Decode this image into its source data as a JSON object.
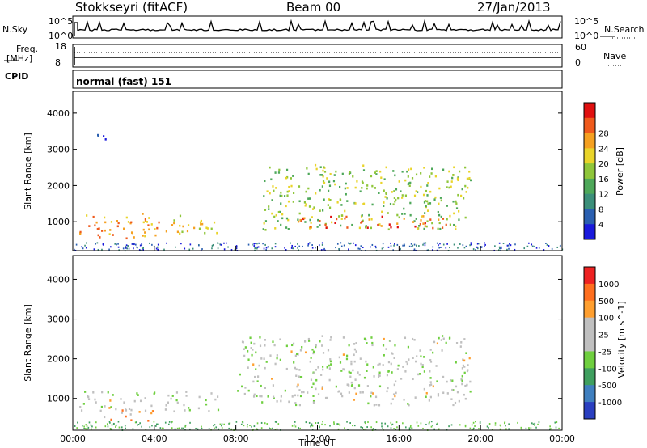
{
  "header": {
    "station": "Stokkseyri (fitACF)",
    "beam": "Beam 00",
    "date": "27/Jan/2013"
  },
  "top_panels": {
    "nsky_label": "N.Sky",
    "nsky_ticks": [
      "10^5",
      "10^0"
    ],
    "nsearch_label": "N.Search",
    "nsearch_ticks": [
      "10^5",
      "10^0"
    ],
    "freq_label": "Freq.",
    "freq_unit": "[MHz]",
    "freq_ticks": [
      "18",
      "8"
    ],
    "nave_label": "Nave",
    "nave_ticks": [
      "60",
      "0"
    ],
    "cpid_label": "CPID",
    "cpid_value": "normal (fast) 151"
  },
  "colors": {
    "power_scale": [
      "#1a1adc",
      "#2a5fb0",
      "#3c8f7a",
      "#4ea85a",
      "#8fc63a",
      "#e9d42a",
      "#f5a020",
      "#ef5a1c",
      "#e01010"
    ],
    "velocity_scale": [
      "#2a3fc0",
      "#3f7fbf",
      "#3f9f5f",
      "#6fcf3f",
      "#c0c0c0",
      "#c0c0c0",
      "#ff9f2f",
      "#ff6f1f",
      "#ee2222"
    ],
    "ground_scatter": "#b9b9b9"
  },
  "chart_data": [
    {
      "type": "heatmap",
      "name": "power-panel",
      "xlabel": "",
      "ylabel": "Slant Range [km]",
      "x_ticks": [
        "00:00",
        "04:00",
        "08:00",
        "12:00",
        "16:00",
        "20:00",
        "00:00"
      ],
      "y_ticks": [
        1000,
        2000,
        3000,
        4000
      ],
      "xlim": [
        0,
        24
      ],
      "ylim": [
        200,
        4600
      ],
      "colorbar": {
        "label": "Power [dB]",
        "ticks": [
          4,
          8,
          12,
          16,
          20,
          24,
          28
        ]
      },
      "regions": [
        {
          "t": [
            0.3,
            4.2
          ],
          "r": [
            500,
            1250
          ],
          "level": 6
        },
        {
          "t": [
            4.2,
            7.1
          ],
          "r": [
            700,
            1200
          ],
          "level": 5
        },
        {
          "t": [
            9.3,
            19.5
          ],
          "r": [
            800,
            2600
          ],
          "level": 4
        },
        {
          "t": [
            11.0,
            18.5
          ],
          "r": [
            850,
            1200
          ],
          "level": 7
        },
        {
          "t": [
            1.0,
            2.0
          ],
          "r": [
            3300,
            3550
          ],
          "level": 1
        }
      ]
    },
    {
      "type": "heatmap",
      "name": "velocity-panel",
      "xlabel": "Time UT",
      "ylabel": "Slant Range [km]",
      "x_ticks": [
        "00:00",
        "04:00",
        "08:00",
        "12:00",
        "16:00",
        "20:00",
        "00:00"
      ],
      "y_ticks": [
        1000,
        2000,
        3000,
        4000
      ],
      "xlim": [
        0,
        24
      ],
      "ylim": [
        200,
        4600
      ],
      "colorbar": {
        "label": "Velocity [m s^-1]",
        "ticks": [
          1000,
          500,
          100,
          25,
          -25,
          -100,
          -500,
          -1000
        ]
      },
      "regions": [
        {
          "t": [
            0.3,
            7.1
          ],
          "r": [
            700,
            1200
          ],
          "level": 4
        },
        {
          "t": [
            1.5,
            4.0
          ],
          "r": [
            450,
            800
          ],
          "level": 6
        },
        {
          "t": [
            8.0,
            19.5
          ],
          "r": [
            850,
            2600
          ],
          "level": 4
        }
      ]
    }
  ]
}
